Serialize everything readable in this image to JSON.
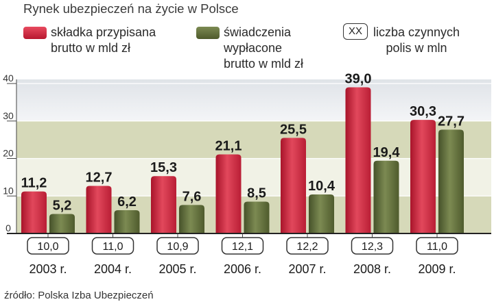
{
  "title": "Rynek ubezpieczeń na życie w Polsce",
  "legend": {
    "series1": "składka przypisana\nbrutto w mld zł",
    "series2": "świadczenia\nwypłacone\nbrutto w mld zł",
    "box_sample": "XX",
    "box_label": "liczba czynnych\npolis w mln"
  },
  "source": "źródło: Polska Izba Ubezpieczeń",
  "colors": {
    "series1": "#c8233b",
    "series2": "#5e6b36",
    "band_light": "#f1f2e6",
    "band_dark": "#d6d9b9"
  },
  "chart_data": {
    "type": "bar",
    "title": "Rynek ubezpieczeń na życie w Polsce",
    "categories": [
      "2003 r.",
      "2004 r.",
      "2005 r.",
      "2006 r.",
      "2007 r.",
      "2008 r.",
      "2009 r."
    ],
    "series": [
      {
        "name": "składka przypisana brutto w mld zł",
        "values": [
          11.2,
          12.7,
          15.3,
          21.1,
          25.5,
          39.0,
          30.3
        ]
      },
      {
        "name": "świadczenia wypłacone brutto w mld zł",
        "values": [
          5.2,
          6.2,
          7.6,
          8.5,
          10.4,
          19.4,
          27.7
        ]
      }
    ],
    "policies_mln": {
      "name": "liczba czynnych polis w mln",
      "values": [
        10.0,
        11.0,
        10.9,
        12.1,
        12.2,
        12.3,
        11.0
      ],
      "labels": [
        "10,0",
        "11,0",
        "10,9",
        "12,1",
        "12,2",
        "12,3",
        "11,0"
      ]
    },
    "value_labels": {
      "series1": [
        "11,2",
        "12,7",
        "15,3",
        "21,1",
        "25,5",
        "39,0",
        "30,3"
      ],
      "series2": [
        "5,2",
        "6,2",
        "7,6",
        "8,5",
        "10,4",
        "19,4",
        "27,7"
      ]
    },
    "yticks": [
      0,
      10,
      20,
      30,
      40
    ],
    "ylim": [
      0,
      40
    ],
    "xlabel": "",
    "ylabel": ""
  }
}
